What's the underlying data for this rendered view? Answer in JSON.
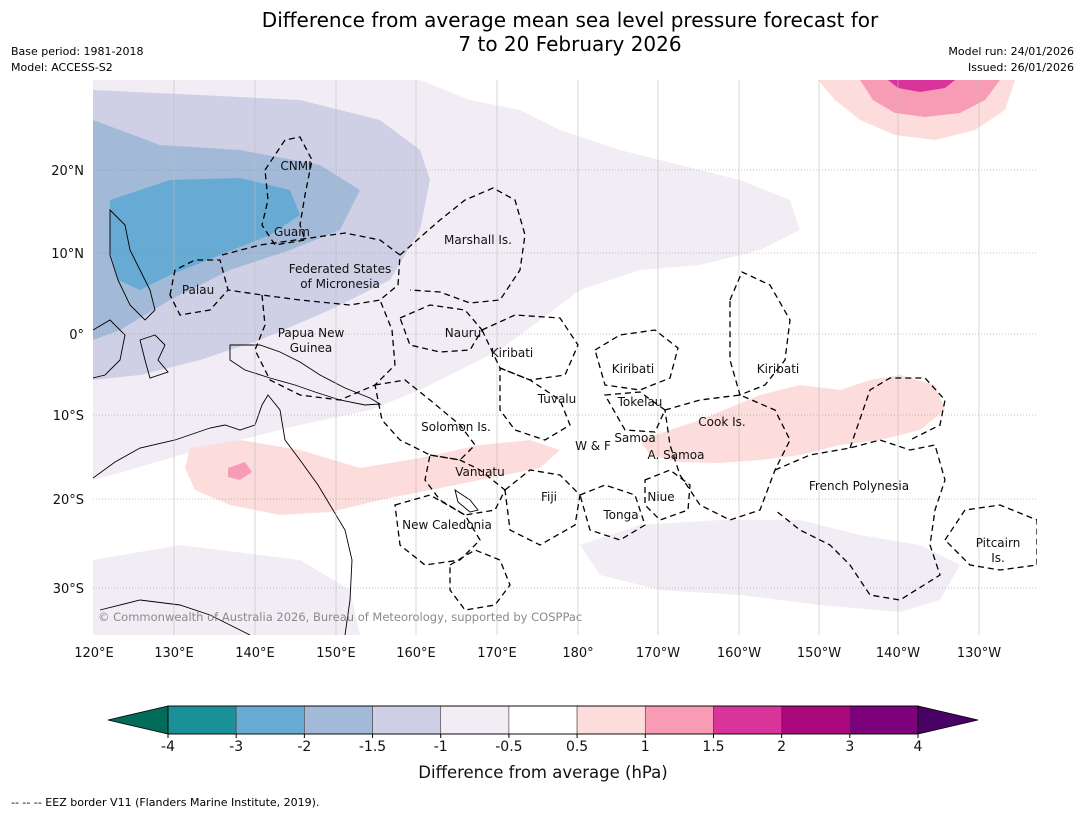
{
  "title": {
    "line1": "Difference from average mean sea level pressure forecast for",
    "line2": "7 to 20 February 2026"
  },
  "meta": {
    "base_period": "Base period: 1981-2018",
    "model": "Model: ACCESS-S2",
    "model_run": "Model run: 24/01/2026",
    "issued": "Issued: 26/01/2026"
  },
  "axes": {
    "lat_labels": [
      "20°N",
      "10°N",
      "0°",
      "10°S",
      "20°S",
      "30°S"
    ],
    "lon_labels": [
      "120°E",
      "130°E",
      "140°E",
      "150°E",
      "160°E",
      "170°E",
      "180°",
      "170°W",
      "160°W",
      "150°W",
      "140°W",
      "130°W"
    ]
  },
  "regions": {
    "cnmi": "CNMI",
    "guam": "Guam",
    "marshall": "Marshall Is.",
    "fsm_1": "Federated States",
    "fsm_2": "of Micronesia",
    "palau": "Palau",
    "png_1": "Papua New",
    "png_2": "Guinea",
    "nauru": "Nauru",
    "kiribati_w": "Kiribati",
    "kiribati_c": "Kiribati",
    "kiribati_e": "Kiribati",
    "tuvalu": "Tuvalu",
    "tokelau": "Tokelau",
    "solomon": "Solomon Is.",
    "cook": "Cook Is.",
    "samoa": "Samoa",
    "wf": "W & F",
    "asamoa": "A. Samoa",
    "vanuatu": "Vanuatu",
    "fiji": "Fiji",
    "niue": "Niue",
    "french_polynesia": "French Polynesia",
    "tonga": "Tonga",
    "new_caledonia": "New Caledonia",
    "pitcairn_1": "Pitcairn",
    "pitcairn_2": "Is."
  },
  "copyright": "© Commonwealth of Australia 2026, Bureau of Meteorology, supported by COSPPac",
  "colorbar": {
    "title": "Difference from average (hPa)",
    "ticks": [
      "-4",
      "-3",
      "-2",
      "-1.5",
      "-1",
      "-0.5",
      "0.5",
      "1",
      "1.5",
      "2",
      "3",
      "4"
    ],
    "colors": [
      "#1a9097",
      "#67aad3",
      "#a3b9d8",
      "#cfd0e6",
      "#f2edf5",
      "#ffffff",
      "#fddcdc",
      "#f89cb6",
      "#d93499",
      "#a9077c",
      "#7b027a"
    ],
    "under_color": "#016c59",
    "over_color": "#4a0166"
  },
  "eez_legend": "--  --  -- EEZ border V11 (Flanders Marine Institute, 2019)."
}
